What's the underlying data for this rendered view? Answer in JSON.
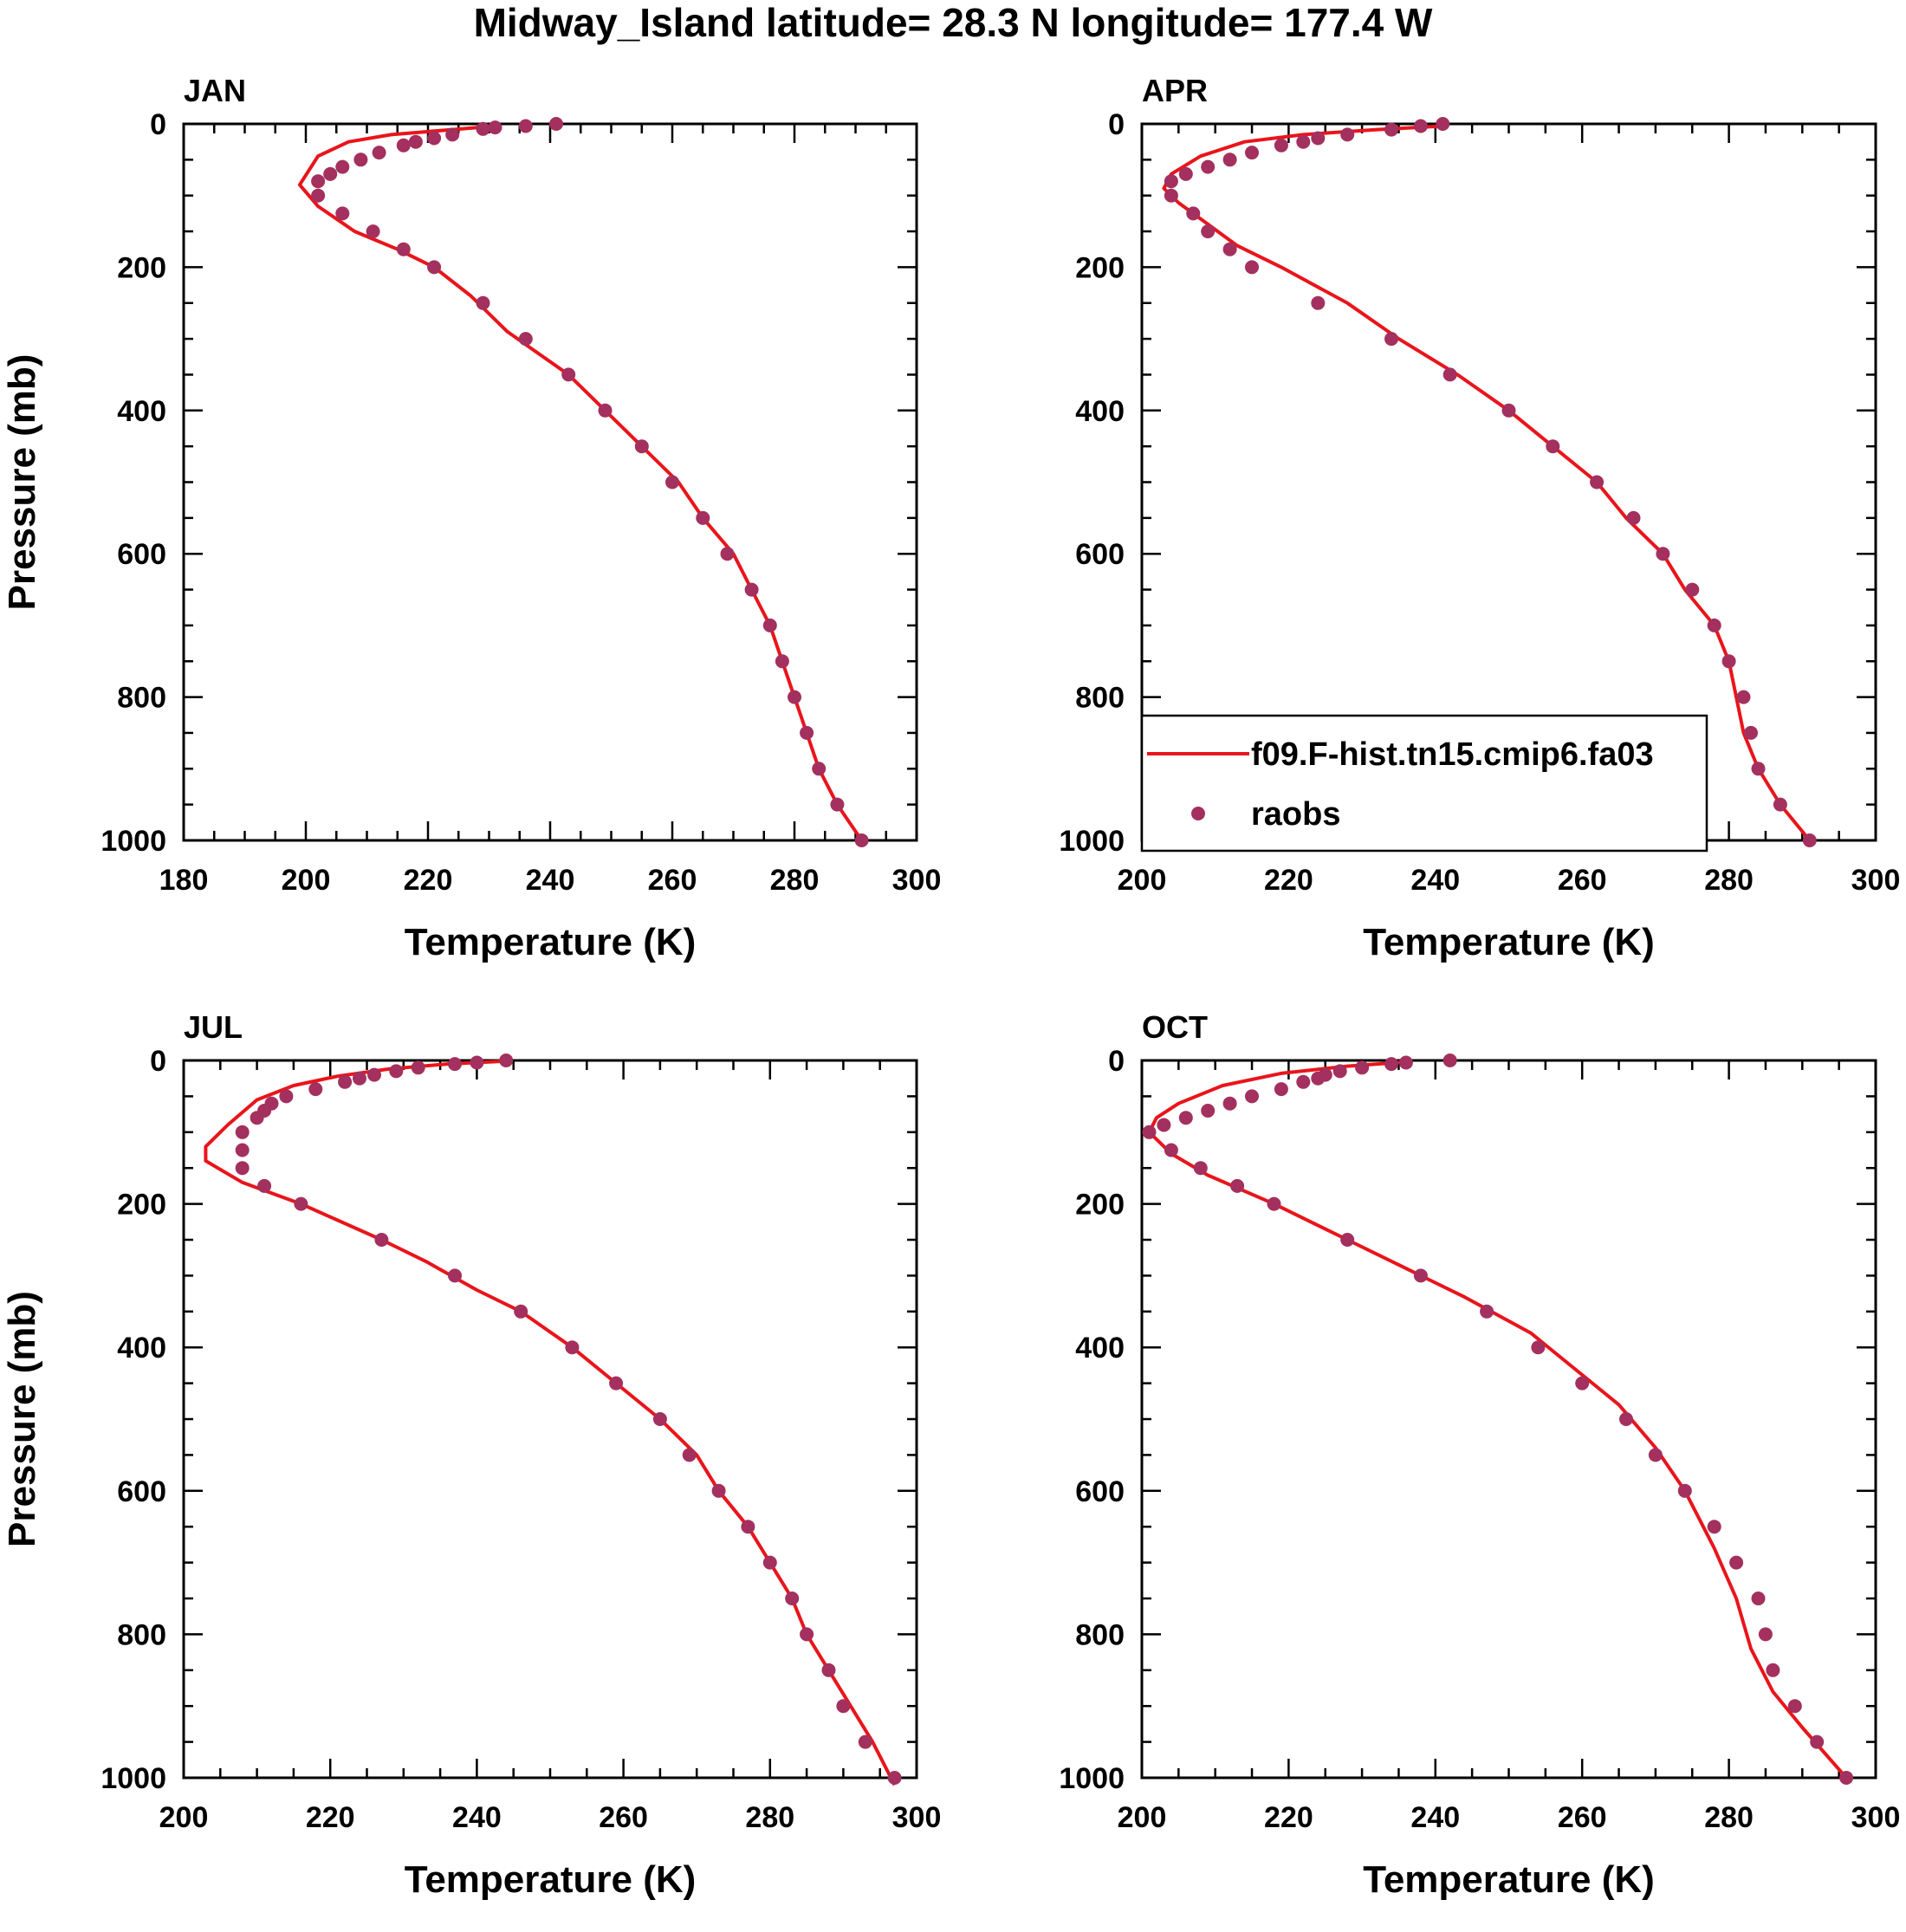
{
  "title": "Midway_Island  latitude= 28.3 N longitude= 177.4 W",
  "colors": {
    "model": "#e8151b",
    "obs": "#a3305e",
    "frame": "#000000"
  },
  "legend": {
    "model": "f09.F-hist.tn15.cmip6.fa03",
    "obs": "raobs",
    "placement": "in APR panel, lower-left"
  },
  "chart_data": [
    {
      "type": "line",
      "title": "JAN",
      "xlabel": "Temperature (K)",
      "ylabel": "Pressure (mb)",
      "xlim": [
        180,
        300
      ],
      "ylim": [
        1000,
        0
      ],
      "xticks": [
        180,
        200,
        220,
        240,
        260,
        280,
        300
      ],
      "yticks": [
        0,
        200,
        400,
        600,
        800,
        1000
      ],
      "series": [
        {
          "name": "f09.F-hist.tn15.cmip6.fa03",
          "kind": "line",
          "points": [
            [
              231,
              3
            ],
            [
              224,
              8
            ],
            [
              214,
              15
            ],
            [
              207,
              25
            ],
            [
              202,
              45
            ],
            [
              199,
              85
            ],
            [
              202,
              115
            ],
            [
              208,
              150
            ],
            [
              215,
              175
            ],
            [
              221,
              200
            ],
            [
              227,
              240
            ],
            [
              233,
              290
            ],
            [
              238,
              320
            ],
            [
              243,
              350
            ],
            [
              249,
              400
            ],
            [
              255,
              450
            ],
            [
              261,
              500
            ],
            [
              265,
              550
            ],
            [
              270,
              600
            ],
            [
              273,
              650
            ],
            [
              276,
              700
            ],
            [
              278,
              750
            ],
            [
              280,
              800
            ],
            [
              282,
              850
            ],
            [
              284,
              900
            ],
            [
              287,
              950
            ],
            [
              291,
              1000
            ]
          ]
        },
        {
          "name": "raobs",
          "kind": "scatter",
          "points": [
            [
              241,
              0
            ],
            [
              236,
              3
            ],
            [
              231,
              5
            ],
            [
              229,
              7
            ],
            [
              224,
              15
            ],
            [
              221,
              20
            ],
            [
              218,
              25
            ],
            [
              216,
              30
            ],
            [
              212,
              40
            ],
            [
              209,
              50
            ],
            [
              206,
              60
            ],
            [
              204,
              70
            ],
            [
              202,
              80
            ],
            [
              202,
              100
            ],
            [
              206,
              125
            ],
            [
              211,
              150
            ],
            [
              216,
              175
            ],
            [
              221,
              200
            ],
            [
              229,
              250
            ],
            [
              236,
              300
            ],
            [
              243,
              350
            ],
            [
              249,
              400
            ],
            [
              255,
              450
            ],
            [
              260,
              500
            ],
            [
              265,
              550
            ],
            [
              269,
              600
            ],
            [
              273,
              650
            ],
            [
              276,
              700
            ],
            [
              278,
              750
            ],
            [
              280,
              800
            ],
            [
              282,
              850
            ],
            [
              284,
              900
            ],
            [
              287,
              950
            ],
            [
              291,
              1000
            ]
          ]
        }
      ]
    },
    {
      "type": "line",
      "title": "APR",
      "xlabel": "Temperature (K)",
      "ylabel": "",
      "xlim": [
        200,
        300
      ],
      "ylim": [
        1000,
        0
      ],
      "xticks": [
        200,
        220,
        240,
        260,
        280,
        300
      ],
      "yticks": [
        0,
        200,
        400,
        600,
        800,
        1000
      ],
      "series": [
        {
          "name": "f09.F-hist.tn15.cmip6.fa03",
          "kind": "line",
          "points": [
            [
              241,
              3
            ],
            [
              232,
              8
            ],
            [
              222,
              15
            ],
            [
              214,
              25
            ],
            [
              208,
              45
            ],
            [
              204,
              70
            ],
            [
              203,
              90
            ],
            [
              205,
              110
            ],
            [
              209,
              140
            ],
            [
              213,
              170
            ],
            [
              219,
              200
            ],
            [
              228,
              250
            ],
            [
              235,
              300
            ],
            [
              243,
              350
            ],
            [
              250,
              400
            ],
            [
              256,
              450
            ],
            [
              262,
              500
            ],
            [
              266,
              550
            ],
            [
              271,
              600
            ],
            [
              274,
              650
            ],
            [
              278,
              700
            ],
            [
              280,
              750
            ],
            [
              281,
              800
            ],
            [
              282,
              850
            ],
            [
              284,
              900
            ],
            [
              287,
              950
            ],
            [
              291,
              1000
            ]
          ]
        },
        {
          "name": "raobs",
          "kind": "scatter",
          "points": [
            [
              241,
              0
            ],
            [
              238,
              3
            ],
            [
              234,
              8
            ],
            [
              228,
              15
            ],
            [
              224,
              20
            ],
            [
              222,
              25
            ],
            [
              219,
              30
            ],
            [
              215,
              40
            ],
            [
              212,
              50
            ],
            [
              209,
              60
            ],
            [
              206,
              70
            ],
            [
              204,
              80
            ],
            [
              204,
              100
            ],
            [
              207,
              125
            ],
            [
              209,
              150
            ],
            [
              212,
              175
            ],
            [
              215,
              200
            ],
            [
              224,
              250
            ],
            [
              234,
              300
            ],
            [
              242,
              350
            ],
            [
              250,
              400
            ],
            [
              256,
              450
            ],
            [
              262,
              500
            ],
            [
              267,
              550
            ],
            [
              271,
              600
            ],
            [
              275,
              650
            ],
            [
              278,
              700
            ],
            [
              280,
              750
            ],
            [
              282,
              800
            ],
            [
              283,
              850
            ],
            [
              284,
              900
            ],
            [
              287,
              950
            ],
            [
              291,
              1000
            ]
          ]
        }
      ]
    },
    {
      "type": "line",
      "title": "JUL",
      "xlabel": "Temperature (K)",
      "ylabel": "Pressure (mb)",
      "xlim": [
        200,
        300
      ],
      "ylim": [
        1000,
        0
      ],
      "xticks": [
        200,
        220,
        240,
        260,
        280,
        300
      ],
      "yticks": [
        0,
        200,
        400,
        600,
        800,
        1000
      ],
      "series": [
        {
          "name": "f09.F-hist.tn15.cmip6.fa03",
          "kind": "line",
          "points": [
            [
              244,
              1
            ],
            [
              236,
              5
            ],
            [
              228,
              12
            ],
            [
              221,
              22
            ],
            [
              215,
              35
            ],
            [
              210,
              55
            ],
            [
              206,
              90
            ],
            [
              203,
              120
            ],
            [
              203,
              140
            ],
            [
              208,
              170
            ],
            [
              216,
              200
            ],
            [
              227,
              250
            ],
            [
              233,
              280
            ],
            [
              240,
              320
            ],
            [
              246,
              350
            ],
            [
              253,
              400
            ],
            [
              259,
              450
            ],
            [
              265,
              500
            ],
            [
              270,
              550
            ],
            [
              273,
              600
            ],
            [
              277,
              650
            ],
            [
              280,
              700
            ],
            [
              283,
              750
            ],
            [
              285,
              800
            ],
            [
              288,
              850
            ],
            [
              291,
              900
            ],
            [
              294,
              950
            ],
            [
              297,
              1010
            ]
          ]
        },
        {
          "name": "raobs",
          "kind": "scatter",
          "points": [
            [
              244,
              0
            ],
            [
              240,
              3
            ],
            [
              237,
              5
            ],
            [
              232,
              10
            ],
            [
              229,
              15
            ],
            [
              226,
              20
            ],
            [
              224,
              25
            ],
            [
              222,
              30
            ],
            [
              218,
              40
            ],
            [
              214,
              50
            ],
            [
              212,
              60
            ],
            [
              211,
              70
            ],
            [
              210,
              80
            ],
            [
              208,
              100
            ],
            [
              208,
              125
            ],
            [
              208,
              150
            ],
            [
              211,
              175
            ],
            [
              216,
              200
            ],
            [
              227,
              250
            ],
            [
              237,
              300
            ],
            [
              246,
              350
            ],
            [
              253,
              400
            ],
            [
              259,
              450
            ],
            [
              265,
              500
            ],
            [
              269,
              550
            ],
            [
              273,
              600
            ],
            [
              277,
              650
            ],
            [
              280,
              700
            ],
            [
              283,
              750
            ],
            [
              285,
              800
            ],
            [
              288,
              850
            ],
            [
              290,
              900
            ],
            [
              293,
              950
            ],
            [
              297,
              1000
            ]
          ]
        }
      ]
    },
    {
      "type": "line",
      "title": "OCT",
      "xlabel": "Temperature (K)",
      "ylabel": "",
      "xlim": [
        200,
        300
      ],
      "ylim": [
        1000,
        0
      ],
      "xticks": [
        200,
        220,
        240,
        260,
        280,
        300
      ],
      "yticks": [
        0,
        200,
        400,
        600,
        800,
        1000
      ],
      "series": [
        {
          "name": "f09.F-hist.tn15.cmip6.fa03",
          "kind": "line",
          "points": [
            [
              236,
              2
            ],
            [
              228,
              8
            ],
            [
              219,
              18
            ],
            [
              211,
              35
            ],
            [
              205,
              60
            ],
            [
              202,
              80
            ],
            [
              201,
              100
            ],
            [
              204,
              130
            ],
            [
              209,
              160
            ],
            [
              218,
              200
            ],
            [
              228,
              250
            ],
            [
              236,
              290
            ],
            [
              244,
              330
            ],
            [
              253,
              380
            ],
            [
              259,
              430
            ],
            [
              265,
              480
            ],
            [
              270,
              540
            ],
            [
              274,
              600
            ],
            [
              278,
              680
            ],
            [
              281,
              750
            ],
            [
              283,
              820
            ],
            [
              286,
              880
            ],
            [
              290,
              930
            ],
            [
              296,
              1000
            ]
          ]
        },
        {
          "name": "raobs",
          "kind": "scatter",
          "points": [
            [
              242,
              0
            ],
            [
              236,
              3
            ],
            [
              234,
              5
            ],
            [
              230,
              10
            ],
            [
              227,
              15
            ],
            [
              225,
              20
            ],
            [
              224,
              25
            ],
            [
              222,
              30
            ],
            [
              219,
              40
            ],
            [
              215,
              50
            ],
            [
              212,
              60
            ],
            [
              209,
              70
            ],
            [
              206,
              80
            ],
            [
              203,
              90
            ],
            [
              201,
              100
            ],
            [
              204,
              125
            ],
            [
              208,
              150
            ],
            [
              213,
              175
            ],
            [
              218,
              200
            ],
            [
              228,
              250
            ],
            [
              238,
              300
            ],
            [
              247,
              350
            ],
            [
              254,
              400
            ],
            [
              260,
              450
            ],
            [
              266,
              500
            ],
            [
              270,
              550
            ],
            [
              274,
              600
            ],
            [
              278,
              650
            ],
            [
              281,
              700
            ],
            [
              284,
              750
            ],
            [
              285,
              800
            ],
            [
              286,
              850
            ],
            [
              289,
              900
            ],
            [
              292,
              950
            ],
            [
              296,
              1000
            ]
          ]
        }
      ]
    }
  ]
}
